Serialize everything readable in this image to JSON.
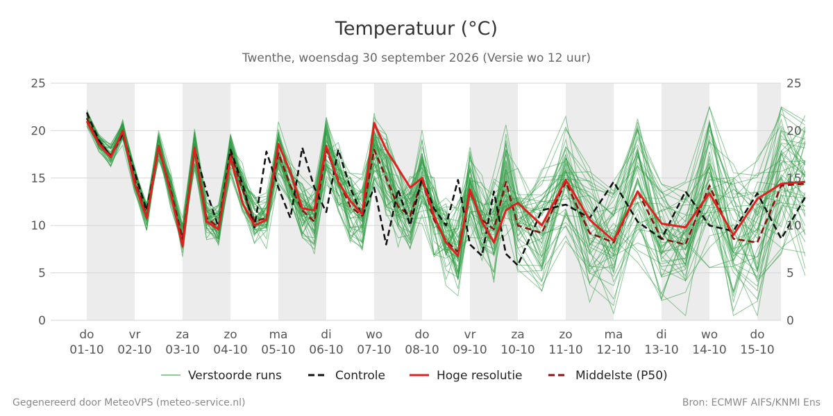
{
  "chart_data": {
    "type": "line",
    "title": "Temperatuur (°C)",
    "subtitle": "Twenthe, woensdag 30 september 2026 (Versie wo 12 uur)",
    "ylim": [
      0,
      25
    ],
    "yticks": [
      "0",
      "5",
      "10",
      "15",
      "20",
      "25"
    ],
    "grid": true,
    "legend_position": "bottom",
    "x": [
      0,
      0.25,
      0.5,
      0.75,
      1,
      1.25,
      1.5,
      1.75,
      2,
      2.25,
      2.5,
      2.75,
      3,
      3.25,
      3.5,
      3.75,
      4,
      4.25,
      4.5,
      4.75,
      5,
      5.25,
      5.5,
      5.75,
      6,
      6.25,
      6.5,
      6.75,
      7,
      7.25,
      7.5,
      7.75,
      8,
      8.25,
      8.5,
      8.75,
      9,
      9.5,
      10,
      10.5,
      11,
      11.5,
      12,
      12.5,
      13,
      13.5,
      14,
      14.5,
      15
    ],
    "day_labels": [
      {
        "day": "do",
        "date": "01-10"
      },
      {
        "day": "vr",
        "date": "02-10"
      },
      {
        "day": "za",
        "date": "03-10"
      },
      {
        "day": "zo",
        "date": "04-10"
      },
      {
        "day": "ma",
        "date": "05-10"
      },
      {
        "day": "di",
        "date": "06-10"
      },
      {
        "day": "wo",
        "date": "07-10"
      },
      {
        "day": "do",
        "date": "08-10"
      },
      {
        "day": "vr",
        "date": "09-10"
      },
      {
        "day": "za",
        "date": "10-10"
      },
      {
        "day": "zo",
        "date": "11-10"
      },
      {
        "day": "ma",
        "date": "12-10"
      },
      {
        "day": "di",
        "date": "13-10"
      },
      {
        "day": "wo",
        "date": "14-10"
      },
      {
        "day": "do",
        "date": "15-10"
      }
    ],
    "series": [
      {
        "name": "Controle",
        "color": "#111111",
        "style": "dashed",
        "values": [
          21.9,
          19.0,
          17.3,
          19.6,
          15.6,
          11.6,
          18.2,
          13.6,
          8.0,
          18.0,
          13.6,
          9.8,
          18.0,
          14.4,
          9.8,
          17.8,
          14.0,
          10.8,
          18.2,
          14.0,
          11.4,
          18.0,
          14.0,
          11.0,
          14.0,
          8.0,
          13.8,
          10.0,
          15.0,
          11.8,
          10.0,
          14.8,
          8.0,
          6.8,
          13.6,
          7.0,
          5.8,
          11.6,
          12.2,
          10.8,
          14.6,
          10.4,
          8.6,
          13.6,
          10.0,
          9.4,
          13.4,
          8.6,
          13.0
        ]
      },
      {
        "name": "Hoge resolutie",
        "color": "#e02020",
        "style": "solid",
        "values": [
          21.0,
          18.6,
          17.2,
          20.0,
          14.4,
          10.8,
          18.4,
          13.4,
          7.8,
          18.2,
          10.4,
          9.6,
          17.2,
          12.4,
          10.0,
          10.6,
          18.6,
          15.6,
          11.8,
          11.6,
          18.4,
          14.6,
          12.6,
          11.2,
          20.8,
          18.0,
          16.0,
          14.0,
          15.0,
          11.0,
          8.2,
          6.8,
          13.8,
          10.4,
          8.2,
          11.6,
          12.4,
          10.0,
          14.8,
          10.6,
          8.4,
          13.6,
          10.2,
          9.8,
          13.4,
          9.0,
          12.8,
          14.4,
          14.6
        ]
      },
      {
        "name": "Middelste (P50)",
        "color": "#8b1010",
        "style": "dashed",
        "values": [
          21.3,
          18.8,
          17.4,
          19.8,
          14.8,
          11.0,
          18.2,
          13.8,
          8.6,
          18.0,
          10.8,
          9.8,
          17.8,
          13.8,
          10.4,
          10.8,
          17.6,
          14.2,
          11.6,
          10.4,
          18.0,
          14.8,
          12.0,
          11.0,
          18.0,
          15.0,
          12.0,
          11.0,
          14.8,
          10.6,
          8.4,
          7.2,
          13.6,
          10.6,
          9.6,
          14.6,
          10.0,
          9.2,
          14.6,
          9.2,
          8.2,
          13.6,
          8.6,
          8.0,
          14.2,
          8.6,
          8.2,
          14.2,
          14.4
        ]
      }
    ],
    "ensemble_name": "Verstoorde runs",
    "ensemble_color": "#2e9a42",
    "ensemble_count": 50
  },
  "legend": [
    {
      "label": "Verstoorde runs",
      "color": "#4caf5a",
      "style": "thin"
    },
    {
      "label": "Controle",
      "color": "#111111",
      "style": "dashed"
    },
    {
      "label": "Hoge resolutie",
      "color": "#e02020",
      "style": "solid"
    },
    {
      "label": "Middelste (P50)",
      "color": "#8b1010",
      "style": "dashed"
    }
  ],
  "footer": {
    "left": "Gegenereerd door MeteoVPS (meteo-service.nl)",
    "right": "Bron: ECMWF AIFS/KNMI Ens"
  }
}
